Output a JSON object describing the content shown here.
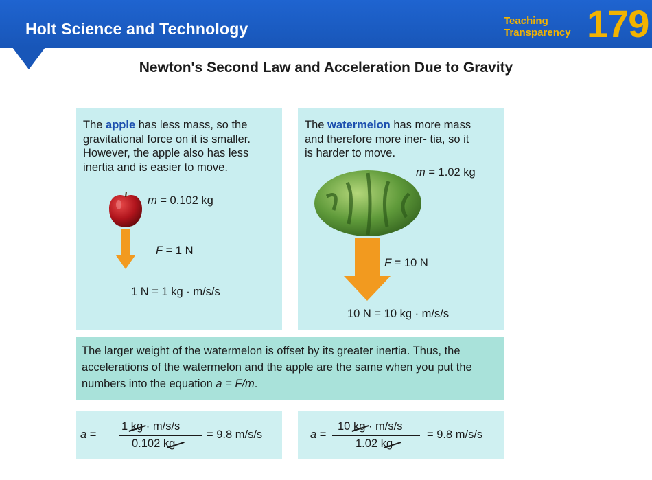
{
  "header": {
    "series_title": "Holt Science and Technology",
    "label_line1": "Teaching",
    "label_line2": "Transparency",
    "number": "179"
  },
  "page_title": "Newton's Second Law and Acceleration Due to Gravity",
  "apple_panel": {
    "text_before": "The ",
    "keyword": "apple",
    "text_after": " has less mass, so the gravitational force on it is smaller. However, the apple also has less inertia and is easier to move.",
    "mass_var": "m",
    "mass_value": " = 0.102 kg",
    "force_var": "F",
    "force_value": " = 1 N",
    "unit_equation": "1 N = 1 kg · m/s/s"
  },
  "watermelon_panel": {
    "text_before": "The ",
    "keyword": "watermelon",
    "text_after": " has more mass and therefore more iner- tia, so it is harder to move.",
    "mass_var": "m",
    "mass_value": " = 1.02 kg",
    "force_var": "F",
    "force_value": " = 10 N",
    "unit_equation": "10 N = 10 kg · m/s/s"
  },
  "summary": {
    "text_before": "The larger weight of the watermelon is offset by its greater inertia. Thus, the accelerations of the watermelon and the apple are the same when you put the numbers into the equation ",
    "equation": "a = F/m",
    "text_after": "."
  },
  "equation_apple": {
    "var": "a",
    "equals": " =",
    "num_value": "1 ",
    "num_unit": "kg",
    "num_rest": " · m/s/s",
    "den_value": "0.102 ",
    "den_unit": "kg",
    "result": "= 9.8 m/s/s"
  },
  "equation_watermelon": {
    "var": "a",
    "equals": " =",
    "num_value": "10 ",
    "num_unit": "kg",
    "num_rest": " · m/s/s",
    "den_value": "1.02 ",
    "den_unit": "kg",
    "result": "= 9.8 m/s/s"
  },
  "colors": {
    "header_blue": "#1856b8",
    "accent_gold": "#f2b300",
    "panel_cyan": "#c9eef0",
    "summary_green": "#a9e2da",
    "keyword_blue": "#1c4fae",
    "arrow_orange": "#f29a1f"
  }
}
